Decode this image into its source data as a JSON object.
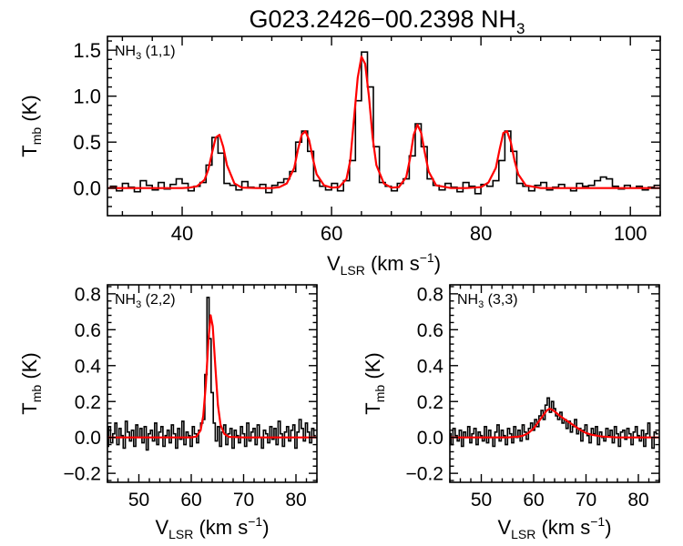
{
  "title": {
    "main": "G023.2426−00.2398 NH",
    "sub": "3"
  },
  "colors": {
    "data": "#000000",
    "fit": "#ff0000",
    "axes": "#000000"
  },
  "chart_data": [
    {
      "type": "line",
      "transition": {
        "pre": "NH",
        "sub": "3",
        "post": " (1,1)"
      },
      "xlabel": {
        "main": "V",
        "sub": "LSR",
        "units": " (km s",
        "exp": "−1",
        "close": ")"
      },
      "ylabel": {
        "main": "T",
        "sub": "mb",
        "units": " (K)"
      },
      "xlim": [
        30,
        104
      ],
      "ylim": [
        -0.3,
        1.65
      ],
      "xticks": [
        40,
        60,
        80,
        100
      ],
      "xtick_labels": [
        "40",
        "60",
        "80",
        "100"
      ],
      "yticks": [
        0.0,
        0.5,
        1.0,
        1.5
      ],
      "ytick_labels": [
        "0.0",
        "0.5",
        "1.0",
        "1.5"
      ],
      "series": [
        {
          "style": "histogram",
          "color": "#000000",
          "x": [
            30.0,
            30.8,
            31.6,
            32.4,
            33.2,
            34.0,
            34.8,
            35.6,
            36.4,
            37.2,
            38.0,
            38.8,
            39.6,
            40.4,
            41.2,
            42.0,
            42.8,
            43.6,
            44.4,
            45.2,
            46.0,
            46.8,
            47.6,
            48.4,
            49.2,
            50.0,
            50.8,
            51.6,
            52.4,
            53.2,
            54.0,
            54.8,
            55.6,
            56.4,
            57.2,
            58.0,
            58.8,
            59.6,
            60.4,
            61.2,
            62.0,
            62.8,
            63.6,
            64.4,
            65.2,
            66.0,
            66.8,
            67.6,
            68.4,
            69.2,
            70.0,
            70.8,
            71.6,
            72.4,
            73.2,
            74.0,
            74.8,
            75.6,
            76.4,
            77.2,
            78.0,
            78.8,
            79.6,
            80.4,
            81.2,
            82.0,
            82.8,
            83.6,
            84.4,
            85.2,
            86.0,
            86.8,
            87.6,
            88.4,
            89.2,
            90.0,
            90.8,
            91.6,
            92.4,
            93.2,
            94.0,
            94.8,
            95.6,
            96.4,
            97.2,
            98.0,
            98.8,
            99.6,
            100.4,
            101.2,
            102.0,
            102.8,
            103.6
          ],
          "y": [
            0.0,
            0.02,
            -0.03,
            0.05,
            0.01,
            -0.04,
            0.08,
            0.03,
            -0.02,
            0.06,
            -0.01,
            0.04,
            0.1,
            0.05,
            -0.03,
            0.02,
            0.06,
            0.25,
            0.55,
            0.38,
            0.05,
            0.03,
            -0.02,
            0.07,
            0.01,
            0.0,
            0.04,
            -0.05,
            0.03,
            0.06,
            0.1,
            0.18,
            0.5,
            0.62,
            0.4,
            0.08,
            0.02,
            -0.02,
            0.05,
            -0.03,
            0.08,
            0.3,
            0.95,
            1.48,
            1.1,
            0.45,
            0.06,
            0.02,
            -0.03,
            0.05,
            0.1,
            0.35,
            0.7,
            0.45,
            0.1,
            0.03,
            -0.02,
            0.05,
            0.01,
            -0.04,
            0.06,
            0.02,
            -0.06,
            0.04,
            0.02,
            0.08,
            0.3,
            0.62,
            0.4,
            0.05,
            0.02,
            -0.03,
            0.03,
            0.06,
            -0.02,
            0.01,
            0.04,
            0.0,
            -0.03,
            0.05,
            0.02,
            0.03,
            0.08,
            0.12,
            0.1,
            0.02,
            -0.01,
            0.03,
            0.0,
            0.02,
            -0.02,
            0.01,
            0.03
          ]
        },
        {
          "style": "line",
          "color": "#ff0000",
          "x": [
            30,
            34,
            38,
            40,
            41,
            42,
            43,
            43.5,
            44,
            44.5,
            45,
            45.5,
            46,
            47,
            48,
            50,
            52,
            53,
            54,
            55,
            55.5,
            56,
            56.5,
            57,
            57.5,
            58,
            59,
            60,
            61,
            62,
            62.5,
            63,
            63.5,
            64,
            64.5,
            65,
            65.5,
            66,
            67,
            68,
            69,
            70,
            70.5,
            71,
            71.5,
            72,
            72.5,
            73,
            74,
            76,
            78,
            80,
            81,
            82,
            82.5,
            83,
            83.5,
            84,
            84.5,
            85,
            86,
            88,
            92,
            96,
            100,
            104
          ],
          "y": [
            0,
            0,
            0,
            0,
            0.005,
            0.02,
            0.09,
            0.2,
            0.38,
            0.55,
            0.58,
            0.45,
            0.25,
            0.05,
            0.005,
            0,
            0,
            0.01,
            0.05,
            0.22,
            0.42,
            0.58,
            0.62,
            0.52,
            0.32,
            0.15,
            0.03,
            0.005,
            0.01,
            0.1,
            0.3,
            0.75,
            1.2,
            1.43,
            1.35,
            1.0,
            0.55,
            0.25,
            0.05,
            0.005,
            0.01,
            0.12,
            0.32,
            0.58,
            0.69,
            0.6,
            0.38,
            0.18,
            0.03,
            0,
            0,
            0.01,
            0.06,
            0.22,
            0.42,
            0.6,
            0.62,
            0.5,
            0.3,
            0.15,
            0.03,
            0,
            0,
            0,
            0,
            0
          ]
        }
      ]
    },
    {
      "type": "line",
      "transition": {
        "pre": "NH",
        "sub": "3",
        "post": " (2,2)"
      },
      "xlabel": {
        "main": "V",
        "sub": "LSR",
        "units": " (km s",
        "exp": "−1",
        "close": ")"
      },
      "ylabel": {
        "main": "T",
        "sub": "mb",
        "units": " (K)"
      },
      "xlim": [
        44,
        84
      ],
      "ylim": [
        -0.25,
        0.85
      ],
      "xticks": [
        50,
        60,
        70,
        80
      ],
      "xtick_labels": [
        "50",
        "60",
        "70",
        "80"
      ],
      "yticks": [
        -0.2,
        0.0,
        0.2,
        0.4,
        0.6,
        0.8
      ],
      "ytick_labels": [
        "−0.2",
        "0.0",
        "0.2",
        "0.4",
        "0.6",
        "0.8"
      ],
      "series": [
        {
          "style": "histogram",
          "color": "#000000",
          "x": [
            44.0,
            44.4,
            44.8,
            45.2,
            45.6,
            46.0,
            46.4,
            46.8,
            47.2,
            47.6,
            48.0,
            48.4,
            48.8,
            49.2,
            49.6,
            50.0,
            50.4,
            50.8,
            51.2,
            51.6,
            52.0,
            52.4,
            52.8,
            53.2,
            53.6,
            54.0,
            54.4,
            54.8,
            55.2,
            55.6,
            56.0,
            56.4,
            56.8,
            57.2,
            57.6,
            58.0,
            58.4,
            58.8,
            59.2,
            59.6,
            60.0,
            60.4,
            60.8,
            61.2,
            61.6,
            62.0,
            62.4,
            62.8,
            63.2,
            63.6,
            64.0,
            64.4,
            64.8,
            65.2,
            65.6,
            66.0,
            66.4,
            66.8,
            67.2,
            67.6,
            68.0,
            68.4,
            68.8,
            69.2,
            69.6,
            70.0,
            70.4,
            70.8,
            71.2,
            71.6,
            72.0,
            72.4,
            72.8,
            73.2,
            73.6,
            74.0,
            74.4,
            74.8,
            75.2,
            75.6,
            76.0,
            76.4,
            76.8,
            77.2,
            77.6,
            78.0,
            78.4,
            78.8,
            79.2,
            79.6,
            80.0,
            80.4,
            80.8,
            81.2,
            81.6,
            82.0,
            82.4,
            82.8,
            83.2,
            83.6
          ],
          "y": [
            -0.05,
            0.06,
            -0.03,
            0.02,
            0.08,
            -0.04,
            0.05,
            0.01,
            -0.06,
            0.09,
            0.03,
            -0.02,
            0.04,
            -0.05,
            0.07,
            0.0,
            0.05,
            -0.03,
            0.06,
            -0.07,
            0.02,
            0.04,
            -0.02,
            0.08,
            -0.04,
            0.03,
            0.06,
            -0.05,
            0.01,
            0.04,
            -0.03,
            0.07,
            0.02,
            -0.06,
            0.05,
            -0.01,
            0.09,
            -0.04,
            0.03,
            0.01,
            -0.05,
            0.06,
            0.02,
            -0.03,
            0.04,
            0.08,
            0.1,
            0.35,
            0.78,
            0.55,
            0.25,
            0.08,
            -0.02,
            0.06,
            -0.05,
            0.03,
            0.07,
            -0.04,
            0.02,
            0.05,
            -0.06,
            0.04,
            0.01,
            -0.03,
            0.06,
            0.02,
            -0.05,
            0.08,
            -0.02,
            0.03,
            0.05,
            -0.04,
            0.07,
            0.0,
            -0.06,
            0.04,
            0.02,
            -0.03,
            0.06,
            -0.01,
            0.05,
            -0.04,
            0.09,
            0.02,
            -0.05,
            0.03,
            0.06,
            -0.02,
            0.04,
            0.07,
            -0.06,
            0.03,
            0.1,
            0.05,
            -0.02,
            0.08,
            0.03,
            -0.03,
            0.05,
            0.01
          ]
        },
        {
          "style": "line",
          "color": "#ff0000",
          "x": [
            44,
            50,
            56,
            60,
            61,
            61.8,
            62.3,
            62.8,
            63.3,
            63.7,
            64.1,
            64.6,
            65.1,
            65.6,
            66.3,
            67.2,
            70,
            76,
            84
          ],
          "y": [
            0,
            0,
            0,
            0,
            0.005,
            0.04,
            0.12,
            0.3,
            0.55,
            0.68,
            0.62,
            0.4,
            0.18,
            0.07,
            0.02,
            0.003,
            0,
            0,
            0
          ]
        }
      ]
    },
    {
      "type": "line",
      "transition": {
        "pre": "NH",
        "sub": "3",
        "post": " (3,3)"
      },
      "xlabel": {
        "main": "V",
        "sub": "LSR",
        "units": " (km s",
        "exp": "−1",
        "close": ")"
      },
      "ylabel": {
        "main": "T",
        "sub": "mb",
        "units": " (K)"
      },
      "xlim": [
        44,
        84
      ],
      "ylim": [
        -0.25,
        0.85
      ],
      "xticks": [
        50,
        60,
        70,
        80
      ],
      "xtick_labels": [
        "50",
        "60",
        "70",
        "80"
      ],
      "yticks": [
        -0.2,
        0.0,
        0.2,
        0.4,
        0.6,
        0.8
      ],
      "ytick_labels": [
        "−0.2",
        "0.0",
        "0.2",
        "0.4",
        "0.6",
        "0.8"
      ],
      "series": [
        {
          "style": "histogram",
          "color": "#000000",
          "x": [
            44.0,
            44.4,
            44.8,
            45.2,
            45.6,
            46.0,
            46.4,
            46.8,
            47.2,
            47.6,
            48.0,
            48.4,
            48.8,
            49.2,
            49.6,
            50.0,
            50.4,
            50.8,
            51.2,
            51.6,
            52.0,
            52.4,
            52.8,
            53.2,
            53.6,
            54.0,
            54.4,
            54.8,
            55.2,
            55.6,
            56.0,
            56.4,
            56.8,
            57.2,
            57.6,
            58.0,
            58.4,
            58.8,
            59.2,
            59.6,
            60.0,
            60.4,
            60.8,
            61.2,
            61.6,
            62.0,
            62.4,
            62.8,
            63.2,
            63.6,
            64.0,
            64.4,
            64.8,
            65.2,
            65.6,
            66.0,
            66.4,
            66.8,
            67.2,
            67.6,
            68.0,
            68.4,
            68.8,
            69.2,
            69.6,
            70.0,
            70.4,
            70.8,
            71.2,
            71.6,
            72.0,
            72.4,
            72.8,
            73.2,
            73.6,
            74.0,
            74.4,
            74.8,
            75.2,
            75.6,
            76.0,
            76.4,
            76.8,
            77.2,
            77.6,
            78.0,
            78.4,
            78.8,
            79.2,
            79.6,
            80.0,
            80.4,
            80.8,
            81.2,
            81.6,
            82.0,
            82.4,
            82.8,
            83.2,
            83.6
          ],
          "y": [
            0.02,
            -0.04,
            0.05,
            0.01,
            -0.02,
            0.04,
            -0.05,
            0.03,
            0.0,
            0.06,
            -0.03,
            0.02,
            0.05,
            -0.04,
            0.03,
            0.01,
            -0.02,
            0.06,
            -0.03,
            0.04,
            0.0,
            -0.05,
            0.03,
            0.07,
            -0.02,
            0.04,
            0.01,
            -0.04,
            0.05,
            0.02,
            -0.03,
            0.06,
            0.0,
            0.04,
            -0.02,
            0.07,
            0.03,
            -0.01,
            0.05,
            0.08,
            0.04,
            0.1,
            0.06,
            0.12,
            0.15,
            0.1,
            0.18,
            0.22,
            0.14,
            0.2,
            0.16,
            0.12,
            0.1,
            0.14,
            0.08,
            0.1,
            0.05,
            0.09,
            0.03,
            0.06,
            0.1,
            0.02,
            0.05,
            -0.02,
            0.04,
            0.07,
            0.01,
            -0.03,
            0.05,
            0.02,
            0.06,
            -0.04,
            0.03,
            0.0,
            -0.02,
            0.05,
            0.01,
            0.04,
            -0.03,
            0.06,
            0.02,
            -0.05,
            0.03,
            0.04,
            -0.01,
            0.05,
            0.02,
            -0.04,
            0.03,
            0.06,
            0.01,
            -0.02,
            0.04,
            -0.05,
            0.02,
            0.08,
            0.0,
            -0.06,
            0.03,
            0.02
          ]
        },
        {
          "style": "line",
          "color": "#ff0000",
          "x": [
            44,
            50,
            55,
            57,
            58,
            59,
            60,
            61,
            62,
            62.5,
            63,
            63.5,
            64,
            65,
            66,
            67,
            68,
            69,
            70,
            71,
            73,
            76,
            84
          ],
          "y": [
            0,
            0,
            0,
            0.004,
            0.01,
            0.025,
            0.05,
            0.09,
            0.13,
            0.15,
            0.16,
            0.155,
            0.145,
            0.12,
            0.1,
            0.08,
            0.06,
            0.04,
            0.025,
            0.015,
            0.005,
            0,
            0
          ]
        }
      ]
    }
  ]
}
